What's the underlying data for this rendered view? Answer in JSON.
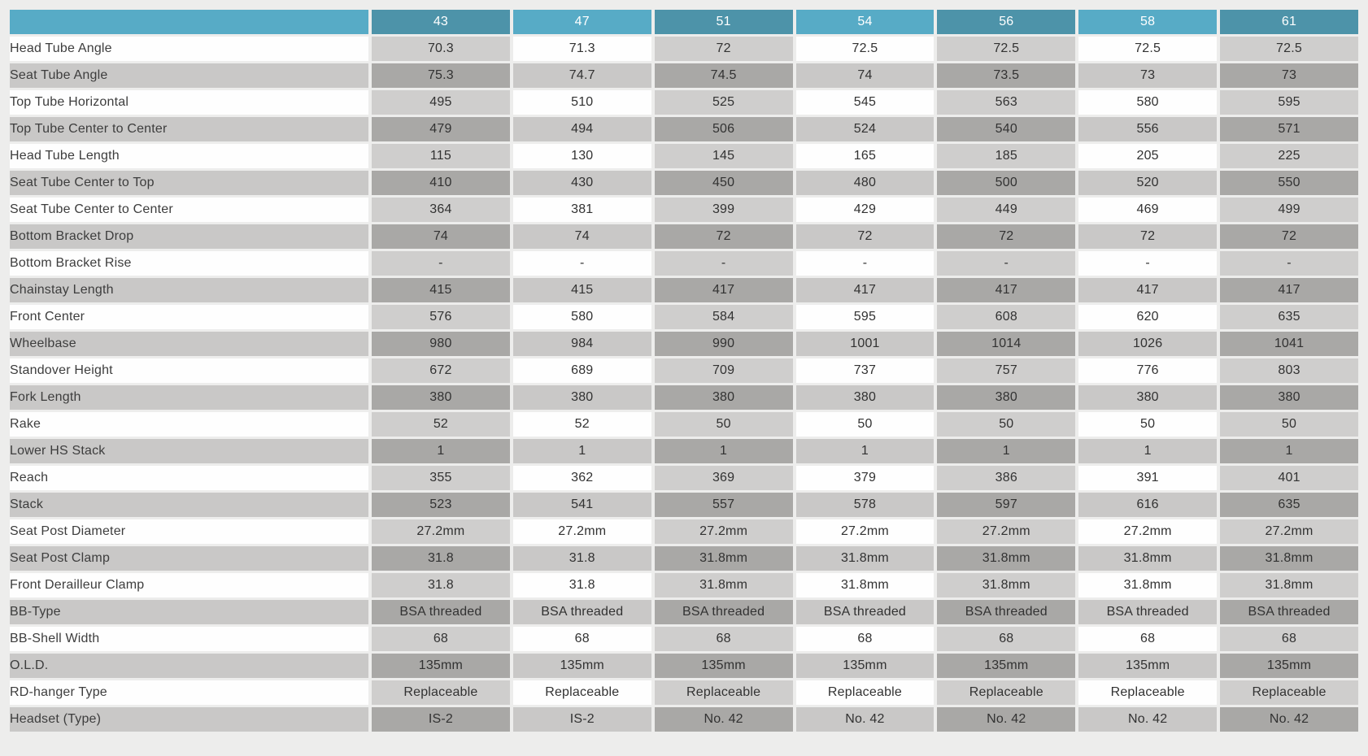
{
  "page": {
    "background": "#ededec",
    "description": "Bicycle frame geometry specification table"
  },
  "colors": {
    "bg": "#ededec",
    "teal-light": "#57abc6",
    "teal-dark": "#4d93a9",
    "cell-white": "#fefefe",
    "cell-light": "#cfcecd",
    "cell-mid": "#c9c8c7",
    "cell-dark": "#a9a8a6",
    "header-text": "#ffffff",
    "text-label": "#3d3d3d",
    "text-dark": "#323232"
  },
  "table": {
    "corner_label": "",
    "sizes": [
      "43",
      "47",
      "51",
      "54",
      "56",
      "58",
      "61"
    ],
    "rows": [
      {
        "label": "Head Tube Angle",
        "values": [
          "70.3",
          "71.3",
          "72",
          "72.5",
          "72.5",
          "72.5",
          "72.5"
        ]
      },
      {
        "label": "Seat Tube Angle",
        "values": [
          "75.3",
          "74.7",
          "74.5",
          "74",
          "73.5",
          "73",
          "73"
        ]
      },
      {
        "label": "Top Tube Horizontal",
        "values": [
          "495",
          "510",
          "525",
          "545",
          "563",
          "580",
          "595"
        ]
      },
      {
        "label": "Top Tube Center to Center",
        "values": [
          "479",
          "494",
          "506",
          "524",
          "540",
          "556",
          "571"
        ]
      },
      {
        "label": "Head Tube Length",
        "values": [
          "115",
          "130",
          "145",
          "165",
          "185",
          "205",
          "225"
        ]
      },
      {
        "label": "Seat Tube Center to Top",
        "values": [
          "410",
          "430",
          "450",
          "480",
          "500",
          "520",
          "550"
        ]
      },
      {
        "label": "Seat Tube Center to Center",
        "values": [
          "364",
          "381",
          "399",
          "429",
          "449",
          "469",
          "499"
        ]
      },
      {
        "label": "Bottom Bracket Drop",
        "values": [
          "74",
          "74",
          "72",
          "72",
          "72",
          "72",
          "72"
        ]
      },
      {
        "label": "Bottom Bracket Rise",
        "values": [
          "-",
          "-",
          "-",
          "-",
          "-",
          "-",
          "-"
        ]
      },
      {
        "label": "Chainstay Length",
        "values": [
          "415",
          "415",
          "417",
          "417",
          "417",
          "417",
          "417"
        ]
      },
      {
        "label": "Front Center",
        "values": [
          "576",
          "580",
          "584",
          "595",
          "608",
          "620",
          "635"
        ]
      },
      {
        "label": "Wheelbase",
        "values": [
          "980",
          "984",
          "990",
          "1001",
          "1014",
          "1026",
          "1041"
        ]
      },
      {
        "label": "Standover Height",
        "values": [
          "672",
          "689",
          "709",
          "737",
          "757",
          "776",
          "803"
        ]
      },
      {
        "label": "Fork Length",
        "values": [
          "380",
          "380",
          "380",
          "380",
          "380",
          "380",
          "380"
        ]
      },
      {
        "label": "Rake",
        "values": [
          "52",
          "52",
          "50",
          "50",
          "50",
          "50",
          "50"
        ]
      },
      {
        "label": "Lower HS Stack",
        "values": [
          "1",
          "1",
          "1",
          "1",
          "1",
          "1",
          "1"
        ]
      },
      {
        "label": "Reach",
        "values": [
          "355",
          "362",
          "369",
          "379",
          "386",
          "391",
          "401"
        ]
      },
      {
        "label": "Stack",
        "values": [
          "523",
          "541",
          "557",
          "578",
          "597",
          "616",
          "635"
        ]
      },
      {
        "label": "Seat Post Diameter",
        "values": [
          "27.2mm",
          "27.2mm",
          "27.2mm",
          "27.2mm",
          "27.2mm",
          "27.2mm",
          "27.2mm"
        ]
      },
      {
        "label": "Seat Post Clamp",
        "values": [
          "31.8",
          "31.8",
          "31.8mm",
          "31.8mm",
          "31.8mm",
          "31.8mm",
          "31.8mm"
        ]
      },
      {
        "label": "Front Derailleur Clamp",
        "values": [
          "31.8",
          "31.8",
          "31.8mm",
          "31.8mm",
          "31.8mm",
          "31.8mm",
          "31.8mm"
        ]
      },
      {
        "label": "BB-Type",
        "values": [
          "BSA threaded",
          "BSA threaded",
          "BSA threaded",
          "BSA threaded",
          "BSA threaded",
          "BSA threaded",
          "BSA threaded"
        ]
      },
      {
        "label": "BB-Shell Width",
        "values": [
          "68",
          "68",
          "68",
          "68",
          "68",
          "68",
          "68"
        ]
      },
      {
        "label": "O.L.D.",
        "values": [
          "135mm",
          "135mm",
          "135mm",
          "135mm",
          "135mm",
          "135mm",
          "135mm"
        ]
      },
      {
        "label": "RD-hanger Type",
        "values": [
          "Replaceable",
          "Replaceable",
          "Replaceable",
          "Replaceable",
          "Replaceable",
          "Replaceable",
          "Replaceable"
        ]
      },
      {
        "label": "Headset (Type)",
        "values": [
          "IS-2",
          "IS-2",
          "No. 42",
          "No. 42",
          "No. 42",
          "No. 42",
          "No. 42"
        ]
      }
    ]
  }
}
